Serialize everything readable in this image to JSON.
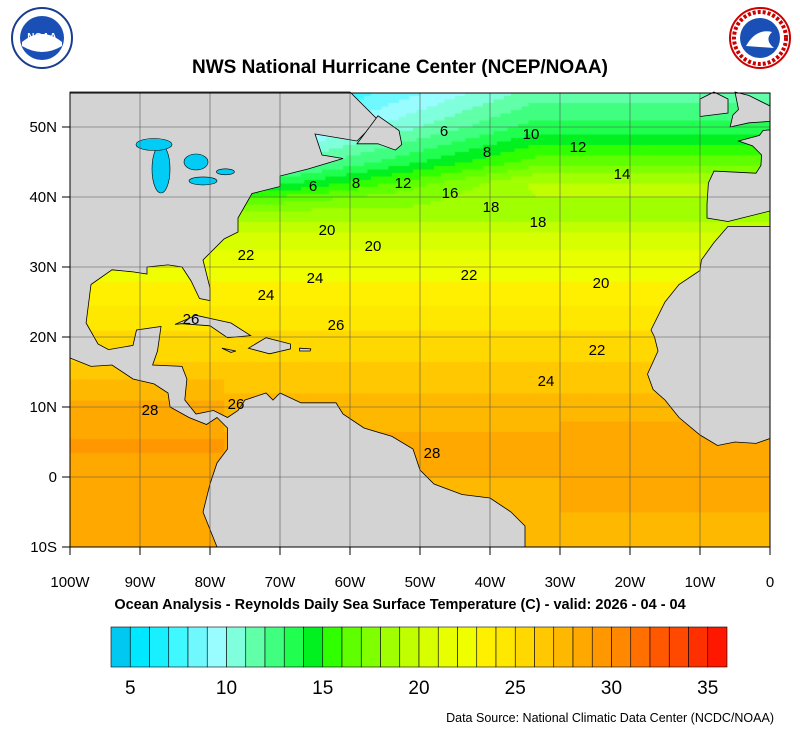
{
  "header": {
    "title": "NWS National Hurricane Center (NCEP/NOAA)",
    "left_logo": {
      "text": "NOAA",
      "icon": "noaa-logo"
    },
    "right_logo": {
      "text": "NATIONAL WEATHER SERVICE",
      "icon": "nws-logo"
    }
  },
  "map": {
    "lon_ticks": [
      "100W",
      "90W",
      "80W",
      "70W",
      "60W",
      "50W",
      "40W",
      "30W",
      "20W",
      "10W",
      "0"
    ],
    "lat_ticks": [
      "50N",
      "40N",
      "30N",
      "20N",
      "10N",
      "0",
      "10S"
    ],
    "lon_range": [
      -100,
      0
    ],
    "lat_range": [
      -10,
      55
    ],
    "land_color": "#d3d3d3",
    "contour_labels": [
      "6",
      "10",
      "8",
      "12",
      "14",
      "6",
      "8",
      "12",
      "16",
      "18",
      "18",
      "20",
      "20",
      "22",
      "22",
      "20",
      "24",
      "24",
      "26",
      "26",
      "22",
      "24",
      "28",
      "26",
      "28"
    ]
  },
  "subtitle": "Ocean Analysis - Reynolds Daily Sea Surface Temperature (C) - valid: 2026 - 04 - 04",
  "colorbar": {
    "range": [
      4,
      36
    ],
    "ticks": [
      "5",
      "10",
      "15",
      "20",
      "25",
      "30",
      "35"
    ],
    "colors": [
      "#00c8f0",
      "#00e8ff",
      "#19f0ff",
      "#40f8ff",
      "#70f8ff",
      "#99fcff",
      "#80ffdc",
      "#60ffa8",
      "#40ff80",
      "#20ff50",
      "#00f020",
      "#30ff00",
      "#60ff00",
      "#80ff00",
      "#a0ff00",
      "#c0ff00",
      "#d8ff00",
      "#e8ff00",
      "#f0ff00",
      "#fff000",
      "#ffe800",
      "#ffd800",
      "#ffc800",
      "#ffb800",
      "#ffa800",
      "#ff9800",
      "#ff8800",
      "#ff7000",
      "#ff5800",
      "#ff4800",
      "#ff3000",
      "#ff1800"
    ]
  },
  "footer": {
    "source": "Data Source: National Climatic Data Center (NCDC/NOAA)"
  }
}
